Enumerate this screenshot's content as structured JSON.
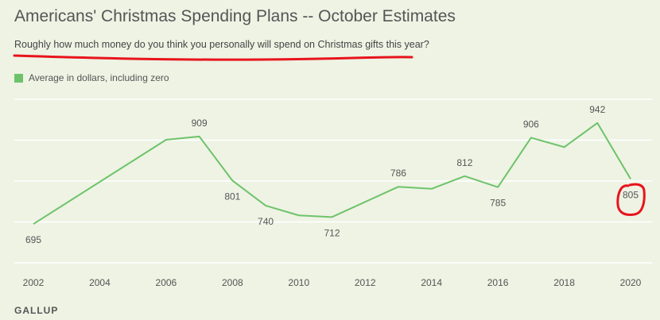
{
  "title": "Americans' Christmas Spending Plans -- October Estimates",
  "subtitle": "Roughly how much money do you think you personally will spend on Christmas gifts this year?",
  "source": "GALLUP",
  "colors": {
    "series": "#6ec36a",
    "grid": "#ffffff",
    "annotation": "#e8141c"
  },
  "chart_data": {
    "type": "line",
    "title": "Americans' Christmas Spending Plans -- October Estimates",
    "xlabel": "",
    "ylabel": "",
    "xlim": [
      2002,
      2020
    ],
    "ylim": [
      600,
      1000
    ],
    "grid": true,
    "legend_position": "top-left",
    "x_ticks": [
      "2002",
      "2004",
      "2006",
      "2008",
      "2010",
      "2012",
      "2014",
      "2016",
      "2018",
      "2020"
    ],
    "series": [
      {
        "name": "Average in dollars, including zero",
        "x": [
          2002,
          2006,
          2007,
          2008,
          2009,
          2010,
          2011,
          2013,
          2014,
          2015,
          2016,
          2017,
          2018,
          2019,
          2020
        ],
        "values": [
          695,
          901,
          909,
          801,
          740,
          716,
          712,
          786,
          781,
          812,
          785,
          906,
          883,
          942,
          805
        ]
      }
    ],
    "labeled_points": [
      {
        "x": 2002,
        "text": "695",
        "pos": "below"
      },
      {
        "x": 2007,
        "text": "909",
        "pos": "above"
      },
      {
        "x": 2008,
        "text": "801",
        "pos": "below"
      },
      {
        "x": 2009,
        "text": "740",
        "pos": "below"
      },
      {
        "x": 2011,
        "text": "712",
        "pos": "below"
      },
      {
        "x": 2013,
        "text": "786",
        "pos": "above"
      },
      {
        "x": 2015,
        "text": "812",
        "pos": "above"
      },
      {
        "x": 2016,
        "text": "785",
        "pos": "below"
      },
      {
        "x": 2017,
        "text": "906",
        "pos": "above"
      },
      {
        "x": 2019,
        "text": "942",
        "pos": "above"
      },
      {
        "x": 2020,
        "text": "805",
        "pos": "below"
      }
    ]
  }
}
